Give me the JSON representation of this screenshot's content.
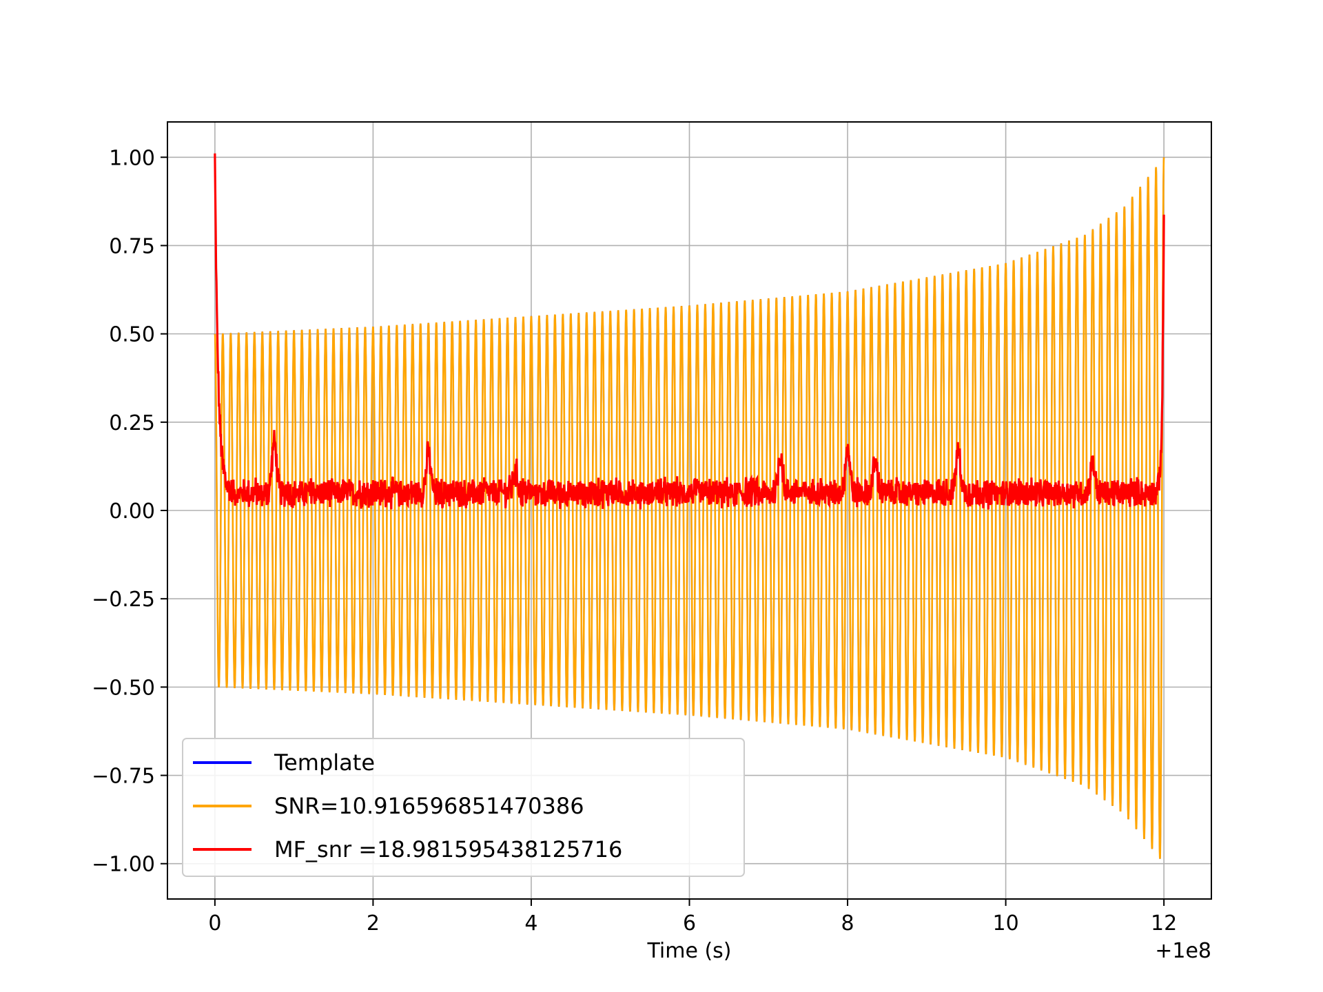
{
  "chart_data": {
    "type": "line",
    "title": "",
    "xlabel": "Time (s)",
    "ylabel": "",
    "x_offset_label": "+1e8",
    "xlim": [
      -0.6,
      12.6
    ],
    "ylim": [
      -1.1,
      1.1
    ],
    "grid": true,
    "xticks": [
      0,
      2,
      4,
      6,
      8,
      10,
      12
    ],
    "xtick_labels": [
      "0",
      "2",
      "4",
      "6",
      "8",
      "10",
      "12"
    ],
    "yticks": [
      1.0,
      0.75,
      0.5,
      0.25,
      0.0,
      -0.25,
      -0.5,
      -0.75,
      -1.0
    ],
    "ytick_labels": [
      "1.00",
      "0.75",
      "0.50",
      "0.25",
      "0.00",
      "−0.25",
      "−0.50",
      "−0.75",
      "−1.00"
    ],
    "legend_position": "lower-left",
    "series": [
      {
        "name": "Template",
        "label": "Template",
        "color": "#0000ff",
        "description": "chirp signal fully overlapped by the SNR series",
        "t_start": 0.0,
        "t_end": 12.0,
        "cycles": 120,
        "amplitude_envelope": [
          [
            0,
            0.5
          ],
          [
            2,
            0.52
          ],
          [
            4,
            0.55
          ],
          [
            6,
            0.58
          ],
          [
            8,
            0.62
          ],
          [
            10,
            0.7
          ],
          [
            11,
            0.78
          ],
          [
            11.5,
            0.86
          ],
          [
            12,
            1.0
          ]
        ]
      },
      {
        "name": "SNR",
        "label": "SNR=10.916596851470386",
        "color": "#ffa500",
        "t_start": 0.0,
        "t_end": 12.0,
        "cycles": 120,
        "amplitude_envelope": [
          [
            0,
            0.5
          ],
          [
            2,
            0.52
          ],
          [
            4,
            0.55
          ],
          [
            6,
            0.58
          ],
          [
            8,
            0.62
          ],
          [
            10,
            0.7
          ],
          [
            11,
            0.78
          ],
          [
            11.5,
            0.86
          ],
          [
            12,
            1.0
          ]
        ]
      },
      {
        "name": "MF_snr",
        "label": "MF_snr =18.981595438125716",
        "color": "#ff0000",
        "start_value": 1.0,
        "end_value": 0.85,
        "baseline": 0.05,
        "spikes": [
          [
            0.75,
            0.2
          ],
          [
            2.7,
            0.16
          ],
          [
            3.8,
            0.11
          ],
          [
            7.15,
            0.16
          ],
          [
            8.0,
            0.18
          ],
          [
            8.35,
            0.14
          ],
          [
            9.4,
            0.17
          ],
          [
            11.1,
            0.14
          ]
        ]
      }
    ]
  }
}
